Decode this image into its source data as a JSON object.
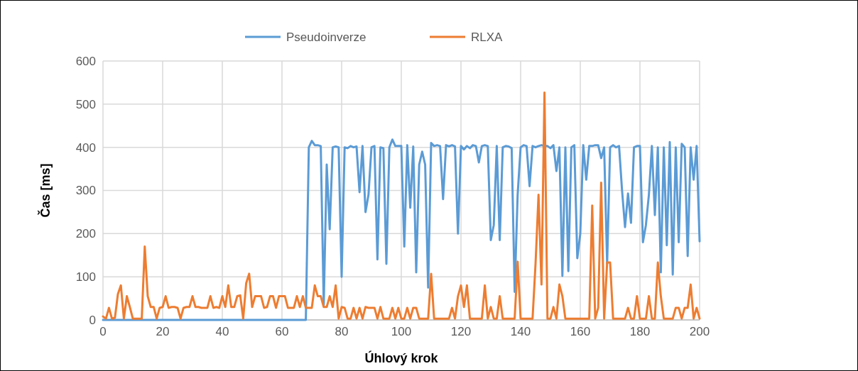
{
  "chart_data": {
    "type": "line",
    "xlabel": "Úhlový krok",
    "ylabel": "Čas [ms]",
    "xlim": [
      0,
      200
    ],
    "xticks": [
      0,
      20,
      40,
      60,
      80,
      100,
      120,
      140,
      160,
      180,
      200
    ],
    "ylim": [
      0,
      600
    ],
    "yticks": [
      0,
      100,
      200,
      300,
      400,
      500,
      600
    ],
    "grid": true,
    "legend": "top",
    "marker": "none",
    "line_style": "solid",
    "x": [
      0,
      1,
      2,
      3,
      4,
      5,
      6,
      7,
      8,
      9,
      10,
      11,
      12,
      13,
      14,
      15,
      16,
      17,
      18,
      19,
      20,
      21,
      22,
      23,
      24,
      25,
      26,
      27,
      28,
      29,
      30,
      31,
      32,
      33,
      34,
      35,
      36,
      37,
      38,
      39,
      40,
      41,
      42,
      43,
      44,
      45,
      46,
      47,
      48,
      49,
      50,
      51,
      52,
      53,
      54,
      55,
      56,
      57,
      58,
      59,
      60,
      61,
      62,
      63,
      64,
      65,
      66,
      67,
      68,
      69,
      70,
      71,
      72,
      73,
      74,
      75,
      76,
      77,
      78,
      79,
      80,
      81,
      82,
      83,
      84,
      85,
      86,
      87,
      88,
      89,
      90,
      91,
      92,
      93,
      94,
      95,
      96,
      97,
      98,
      99,
      100,
      101,
      102,
      103,
      104,
      105,
      106,
      107,
      108,
      109,
      110,
      111,
      112,
      113,
      114,
      115,
      116,
      117,
      118,
      119,
      120,
      121,
      122,
      123,
      124,
      125,
      126,
      127,
      128,
      129,
      130,
      131,
      132,
      133,
      134,
      135,
      136,
      137,
      138,
      139,
      140,
      141,
      142,
      143,
      144,
      145,
      146,
      147,
      148,
      149,
      150,
      151,
      152,
      153,
      154,
      155,
      156,
      157,
      158,
      159,
      160,
      161,
      162,
      163,
      164,
      165,
      166,
      167,
      168,
      169,
      170,
      171,
      172,
      173,
      174,
      175,
      176,
      177,
      178,
      179,
      180,
      181,
      182,
      183,
      184,
      185,
      186,
      187,
      188,
      189,
      190,
      191,
      192,
      193,
      194,
      195,
      196,
      197,
      198,
      199,
      200
    ],
    "series": [
      {
        "name": "Pseudoinverze",
        "color": "#5b9bd5",
        "values": [
          0,
          0,
          0,
          0,
          0,
          0,
          0,
          0,
          0,
          0,
          0,
          0,
          0,
          0,
          0,
          0,
          0,
          0,
          0,
          0,
          0,
          0,
          0,
          0,
          0,
          0,
          0,
          0,
          0,
          0,
          0,
          0,
          0,
          0,
          0,
          0,
          0,
          0,
          0,
          0,
          0,
          0,
          0,
          0,
          0,
          0,
          0,
          0,
          0,
          0,
          0,
          0,
          0,
          0,
          0,
          0,
          0,
          0,
          0,
          0,
          0,
          0,
          0,
          0,
          0,
          0,
          0,
          0,
          0,
          400,
          415,
          405,
          405,
          403,
          35,
          360,
          210,
          400,
          402,
          400,
          100,
          400,
          398,
          403,
          400,
          402,
          296,
          403,
          250,
          290,
          400,
          403,
          140,
          400,
          398,
          130,
          400,
          418,
          403,
          403,
          403,
          170,
          405,
          260,
          402,
          110,
          360,
          390,
          360,
          75,
          410,
          403,
          405,
          403,
          280,
          405,
          402,
          405,
          402,
          200,
          403,
          395,
          403,
          398,
          405,
          403,
          365,
          403,
          405,
          403,
          185,
          220,
          403,
          185,
          400,
          403,
          402,
          398,
          65,
          290,
          400,
          405,
          403,
          310,
          403,
          400,
          403,
          405,
          403,
          403,
          398,
          405,
          345,
          400,
          102,
          400,
          113,
          400,
          405,
          143,
          200,
          405,
          325,
          403,
          403,
          405,
          405,
          375,
          400,
          130,
          400,
          405,
          400,
          403,
          300,
          215,
          293,
          225,
          400,
          403,
          403,
          180,
          220,
          290,
          403,
          243,
          400,
          110,
          400,
          173,
          412,
          105,
          400,
          180,
          408,
          400,
          148,
          400,
          325,
          403,
          182
        ]
      },
      {
        "name": "RLXA",
        "color": "#ed7d31",
        "values": [
          8,
          3,
          28,
          3,
          5,
          60,
          80,
          3,
          55,
          30,
          3,
          3,
          3,
          3,
          170,
          55,
          30,
          30,
          3,
          28,
          30,
          55,
          28,
          30,
          30,
          28,
          3,
          28,
          30,
          30,
          55,
          30,
          30,
          28,
          28,
          28,
          55,
          28,
          30,
          28,
          55,
          30,
          80,
          30,
          30,
          55,
          57,
          3,
          85,
          107,
          30,
          55,
          55,
          55,
          28,
          30,
          55,
          55,
          28,
          55,
          55,
          55,
          28,
          28,
          28,
          55,
          30,
          55,
          28,
          28,
          28,
          80,
          55,
          55,
          30,
          30,
          55,
          30,
          80,
          3,
          30,
          28,
          3,
          3,
          28,
          3,
          28,
          3,
          30,
          28,
          28,
          28,
          3,
          30,
          3,
          3,
          3,
          28,
          3,
          28,
          3,
          3,
          28,
          3,
          28,
          28,
          3,
          3,
          3,
          3,
          107,
          3,
          3,
          3,
          3,
          3,
          3,
          28,
          3,
          55,
          80,
          30,
          80,
          3,
          3,
          3,
          3,
          3,
          80,
          3,
          30,
          3,
          3,
          55,
          3,
          3,
          3,
          3,
          3,
          135,
          3,
          3,
          3,
          3,
          3,
          130,
          290,
          82,
          527,
          3,
          3,
          30,
          3,
          82,
          55,
          3,
          3,
          3,
          3,
          3,
          3,
          3,
          3,
          3,
          265,
          3,
          28,
          318,
          3,
          133,
          133,
          3,
          3,
          3,
          3,
          3,
          28,
          3,
          3,
          55,
          3,
          3,
          3,
          55,
          3,
          3,
          133,
          55,
          3,
          3,
          3,
          3,
          28,
          28,
          3,
          28,
          28,
          82,
          3,
          28,
          3
        ]
      }
    ]
  }
}
